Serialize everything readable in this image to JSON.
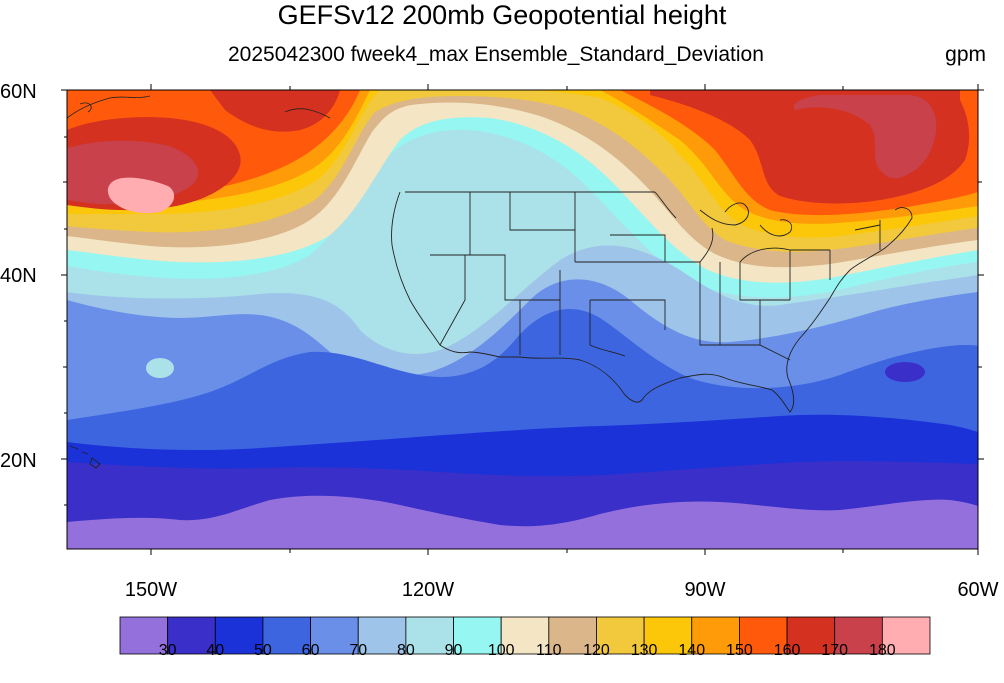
{
  "title": "GEFSv12 200mb Geopotential height",
  "subtitle": "2025042300 fweek4_max Ensemble_Standard_Deviation",
  "units": "gpm",
  "lat_labels": [
    "60N",
    "40N",
    "20N"
  ],
  "lon_labels": [
    "150W",
    "120W",
    "90W",
    "60W"
  ],
  "colorbar": {
    "labels": [
      "30",
      "40",
      "50",
      "60",
      "70",
      "80",
      "90",
      "100",
      "110",
      "120",
      "130",
      "140",
      "150",
      "160",
      "170",
      "180"
    ],
    "colors": [
      "#9370db",
      "#3a2fc8",
      "#1a32d8",
      "#3d65e0",
      "#6a8fe8",
      "#9ec4ea",
      "#abe2e9",
      "#95f6f2",
      "#f4e6c4",
      "#dab68a",
      "#f2c83c",
      "#fcc708",
      "#ff9b08",
      "#ff5a0c",
      "#d43120",
      "#c8414b",
      "#ffadb0"
    ]
  },
  "map": {
    "region": "United States and North Pacific",
    "lat_range": [
      10,
      60
    ],
    "lon_range": [
      -160,
      -60
    ],
    "field": "200mb geopotential height ensemble standard deviation",
    "max_value_approx": 185,
    "min_value_approx": 25
  }
}
